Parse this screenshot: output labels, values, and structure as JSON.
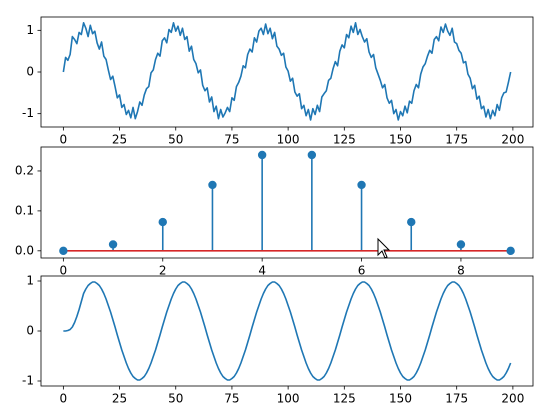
{
  "chart_data": [
    {
      "type": "line",
      "color": "#1f77b4",
      "x": [
        0,
        1,
        2,
        3,
        4,
        5,
        6,
        7,
        8,
        9,
        10,
        11,
        12,
        13,
        14,
        15,
        16,
        17,
        18,
        19,
        20,
        21,
        22,
        23,
        24,
        25,
        26,
        27,
        28,
        29,
        30,
        31,
        32,
        33,
        34,
        35,
        36,
        37,
        38,
        39,
        40,
        41,
        42,
        43,
        44,
        45,
        46,
        47,
        48,
        49,
        50,
        51,
        52,
        53,
        54,
        55,
        56,
        57,
        58,
        59,
        60,
        61,
        62,
        63,
        64,
        65,
        66,
        67,
        68,
        69,
        70,
        71,
        72,
        73,
        74,
        75,
        76,
        77,
        78,
        79,
        80,
        81,
        82,
        83,
        84,
        85,
        86,
        87,
        88,
        89,
        90,
        91,
        92,
        93,
        94,
        95,
        96,
        97,
        98,
        99,
        100,
        101,
        102,
        103,
        104,
        105,
        106,
        107,
        108,
        109,
        110,
        111,
        112,
        113,
        114,
        115,
        116,
        117,
        118,
        119,
        120,
        121,
        122,
        123,
        124,
        125,
        126,
        127,
        128,
        129,
        130,
        131,
        132,
        133,
        134,
        135,
        136,
        137,
        138,
        139,
        140,
        141,
        142,
        143,
        144,
        145,
        146,
        147,
        148,
        149,
        150,
        151,
        152,
        153,
        154,
        155,
        156,
        157,
        158,
        159,
        160,
        161,
        162,
        163,
        164,
        165,
        166,
        167,
        168,
        169,
        170,
        171,
        172,
        173,
        174,
        175,
        176,
        177,
        178,
        179,
        180,
        181,
        182,
        183,
        184,
        185,
        186,
        187,
        188,
        189,
        190,
        191,
        192,
        193,
        194,
        195,
        196,
        197,
        198,
        199
      ],
      "values": [
        0,
        0.35,
        0.28,
        0.42,
        0.85,
        0.78,
        0.68,
        0.95,
        0.9,
        1.18,
        1.05,
        0.85,
        1.12,
        0.92,
        0.98,
        0.7,
        0.55,
        0.72,
        0.38,
        0.3,
        0.05,
        -0.18,
        -0.1,
        -0.35,
        -0.62,
        -0.55,
        -0.85,
        -0.78,
        -1.02,
        -0.92,
        -1.1,
        -0.85,
        -1.12,
        -0.95,
        -0.72,
        -0.8,
        -0.55,
        -0.4,
        -0.35,
        -0.02,
        0.05,
        0.3,
        0.45,
        0.38,
        0.75,
        0.82,
        0.7,
        1.02,
        0.95,
        1.18,
        0.98,
        1.1,
        0.88,
        1.05,
        0.78,
        0.85,
        0.5,
        0.62,
        0.3,
        0.2,
        -0.02,
        0.05,
        -0.32,
        -0.45,
        -0.38,
        -0.72,
        -0.6,
        -0.95,
        -0.82,
        -1.12,
        -0.9,
        -1.08,
        -0.98,
        -0.85,
        -0.95,
        -0.62,
        -0.68,
        -0.35,
        -0.25,
        -0.1,
        0.15,
        0.1,
        0.42,
        0.55,
        0.48,
        0.82,
        0.72,
        0.98,
        1.05,
        0.9,
        1.15,
        0.92,
        1.05,
        0.8,
        0.95,
        0.62,
        0.55,
        0.4,
        0.45,
        0.12,
        0.02,
        -0.22,
        -0.15,
        -0.48,
        -0.58,
        -0.52,
        -0.88,
        -0.8,
        -1.05,
        -0.9,
        -1.15,
        -0.88,
        -1.02,
        -0.8,
        -0.95,
        -0.6,
        -0.52,
        -0.45,
        -0.2,
        -0.15,
        0.08,
        0.25,
        0.15,
        0.5,
        0.65,
        0.58,
        0.9,
        0.82,
        1.1,
        0.95,
        1.18,
        0.9,
        1.02,
        0.85,
        0.72,
        0.8,
        0.48,
        0.35,
        0.42,
        0.1,
        -0.05,
        -0.2,
        -0.38,
        -0.3,
        -0.62,
        -0.75,
        -0.68,
        -1,
        -0.9,
        -1.15,
        -0.95,
        -1.05,
        -0.82,
        -0.98,
        -0.7,
        -0.75,
        -0.45,
        -0.3,
        -0.38,
        -0.05,
        0.12,
        0.2,
        0.38,
        0.52,
        0.45,
        0.78,
        0.85,
        0.75,
        1.08,
        0.95,
        1.15,
        0.98,
        0.88,
        1.05,
        0.72,
        0.68,
        0.52,
        0.45,
        0.22,
        0.25,
        -0.05,
        -0.15,
        -0.4,
        -0.32,
        -0.65,
        -0.58,
        -0.88,
        -0.82,
        -1.08,
        -0.9,
        -1.12,
        -0.92,
        -1.05,
        -0.78,
        -0.92,
        -0.62,
        -0.5,
        -0.48,
        -0.25,
        0
      ],
      "xlim": [
        -9.95,
        208.95
      ],
      "xticks": [
        0,
        25,
        50,
        75,
        100,
        125,
        150,
        175,
        200
      ],
      "ylim": [
        -1.32,
        1.32
      ],
      "yticks": [
        -1,
        0,
        1
      ]
    },
    {
      "type": "stem",
      "color": "#1f77b4",
      "baseline_color": "#d62728",
      "x": [
        0,
        1,
        2,
        3,
        4,
        5,
        6,
        7,
        8,
        9
      ],
      "values": [
        0,
        0.016,
        0.072,
        0.165,
        0.24,
        0.24,
        0.165,
        0.072,
        0.016,
        0
      ],
      "xlim": [
        -0.45,
        9.45
      ],
      "xticks": [
        0,
        2,
        4,
        6,
        8
      ],
      "ylim": [
        -0.018,
        0.26
      ],
      "yticks": [
        {
          "value": 0,
          "label": "0.0"
        },
        0.1,
        0.2
      ]
    },
    {
      "type": "line",
      "color": "#1f77b4",
      "x": [
        0,
        1,
        2,
        3,
        4,
        5,
        6,
        7,
        8,
        9,
        10,
        11,
        12,
        13,
        14,
        15,
        16,
        17,
        18,
        19,
        20,
        21,
        22,
        23,
        24,
        25,
        26,
        27,
        28,
        29,
        30,
        31,
        32,
        33,
        34,
        35,
        36,
        37,
        38,
        39,
        40,
        41,
        42,
        43,
        44,
        45,
        46,
        47,
        48,
        49,
        50,
        51,
        52,
        53,
        54,
        55,
        56,
        57,
        58,
        59,
        60,
        61,
        62,
        63,
        64,
        65,
        66,
        67,
        68,
        69,
        70,
        71,
        72,
        73,
        74,
        75,
        76,
        77,
        78,
        79,
        80,
        81,
        82,
        83,
        84,
        85,
        86,
        87,
        88,
        89,
        90,
        91,
        92,
        93,
        94,
        95,
        96,
        97,
        98,
        99,
        100,
        101,
        102,
        103,
        104,
        105,
        106,
        107,
        108,
        109,
        110,
        111,
        112,
        113,
        114,
        115,
        116,
        117,
        118,
        119,
        120,
        121,
        122,
        123,
        124,
        125,
        126,
        127,
        128,
        129,
        130,
        131,
        132,
        133,
        134,
        135,
        136,
        137,
        138,
        139,
        140,
        141,
        142,
        143,
        144,
        145,
        146,
        147,
        148,
        149,
        150,
        151,
        152,
        153,
        154,
        155,
        156,
        157,
        158,
        159,
        160,
        161,
        162,
        163,
        164,
        165,
        166,
        167,
        168,
        169,
        170,
        171,
        172,
        173,
        174,
        175,
        176,
        177,
        178,
        179,
        180,
        181,
        182,
        183,
        184,
        185,
        186,
        187,
        188,
        189,
        190,
        191,
        192,
        193,
        194,
        195,
        196,
        197,
        198,
        199
      ],
      "values": [
        0,
        0,
        0.01,
        0.03,
        0.08,
        0.17,
        0.29,
        0.43,
        0.59,
        0.75,
        0.84,
        0.91,
        0.95,
        0.98,
        0.98,
        0.95,
        0.91,
        0.84,
        0.75,
        0.64,
        0.51,
        0.38,
        0.23,
        0.08,
        -0.08,
        -0.23,
        -0.38,
        -0.51,
        -0.64,
        -0.75,
        -0.84,
        -0.91,
        -0.95,
        -0.98,
        -0.98,
        -0.95,
        -0.91,
        -0.84,
        -0.75,
        -0.64,
        -0.51,
        -0.38,
        -0.23,
        -0.08,
        0.08,
        0.23,
        0.38,
        0.51,
        0.64,
        0.75,
        0.84,
        0.91,
        0.95,
        0.98,
        0.98,
        0.95,
        0.91,
        0.84,
        0.75,
        0.64,
        0.51,
        0.38,
        0.23,
        0.08,
        -0.08,
        -0.23,
        -0.38,
        -0.51,
        -0.64,
        -0.75,
        -0.84,
        -0.91,
        -0.95,
        -0.98,
        -0.98,
        -0.95,
        -0.91,
        -0.84,
        -0.75,
        -0.64,
        -0.51,
        -0.38,
        -0.23,
        -0.08,
        0.08,
        0.23,
        0.38,
        0.51,
        0.64,
        0.75,
        0.84,
        0.91,
        0.95,
        0.98,
        0.98,
        0.95,
        0.91,
        0.84,
        0.75,
        0.64,
        0.51,
        0.38,
        0.23,
        0.08,
        -0.08,
        -0.23,
        -0.38,
        -0.51,
        -0.64,
        -0.75,
        -0.84,
        -0.91,
        -0.95,
        -0.98,
        -0.98,
        -0.95,
        -0.91,
        -0.84,
        -0.75,
        -0.64,
        -0.51,
        -0.38,
        -0.23,
        -0.08,
        0.08,
        0.23,
        0.38,
        0.51,
        0.64,
        0.75,
        0.84,
        0.91,
        0.95,
        0.98,
        0.98,
        0.95,
        0.91,
        0.84,
        0.75,
        0.64,
        0.51,
        0.38,
        0.23,
        0.08,
        -0.08,
        -0.23,
        -0.38,
        -0.51,
        -0.64,
        -0.75,
        -0.84,
        -0.91,
        -0.95,
        -0.98,
        -0.98,
        -0.95,
        -0.91,
        -0.84,
        -0.75,
        -0.64,
        -0.51,
        -0.38,
        -0.23,
        -0.08,
        0.08,
        0.23,
        0.38,
        0.51,
        0.64,
        0.75,
        0.84,
        0.91,
        0.95,
        0.98,
        0.98,
        0.95,
        0.91,
        0.84,
        0.75,
        0.64,
        0.51,
        0.38,
        0.23,
        0.08,
        -0.08,
        -0.23,
        -0.38,
        -0.51,
        -0.64,
        -0.75,
        -0.84,
        -0.91,
        -0.95,
        -0.98,
        -0.98,
        -0.95,
        -0.91,
        -0.84,
        -0.75,
        -0.64
      ],
      "xlim": [
        -9.95,
        208.95
      ],
      "xticks": [
        0,
        25,
        50,
        75,
        100,
        125,
        150,
        175,
        200
      ],
      "ylim": [
        -1.1,
        1.1
      ],
      "yticks": [
        -1,
        0,
        1
      ]
    }
  ]
}
